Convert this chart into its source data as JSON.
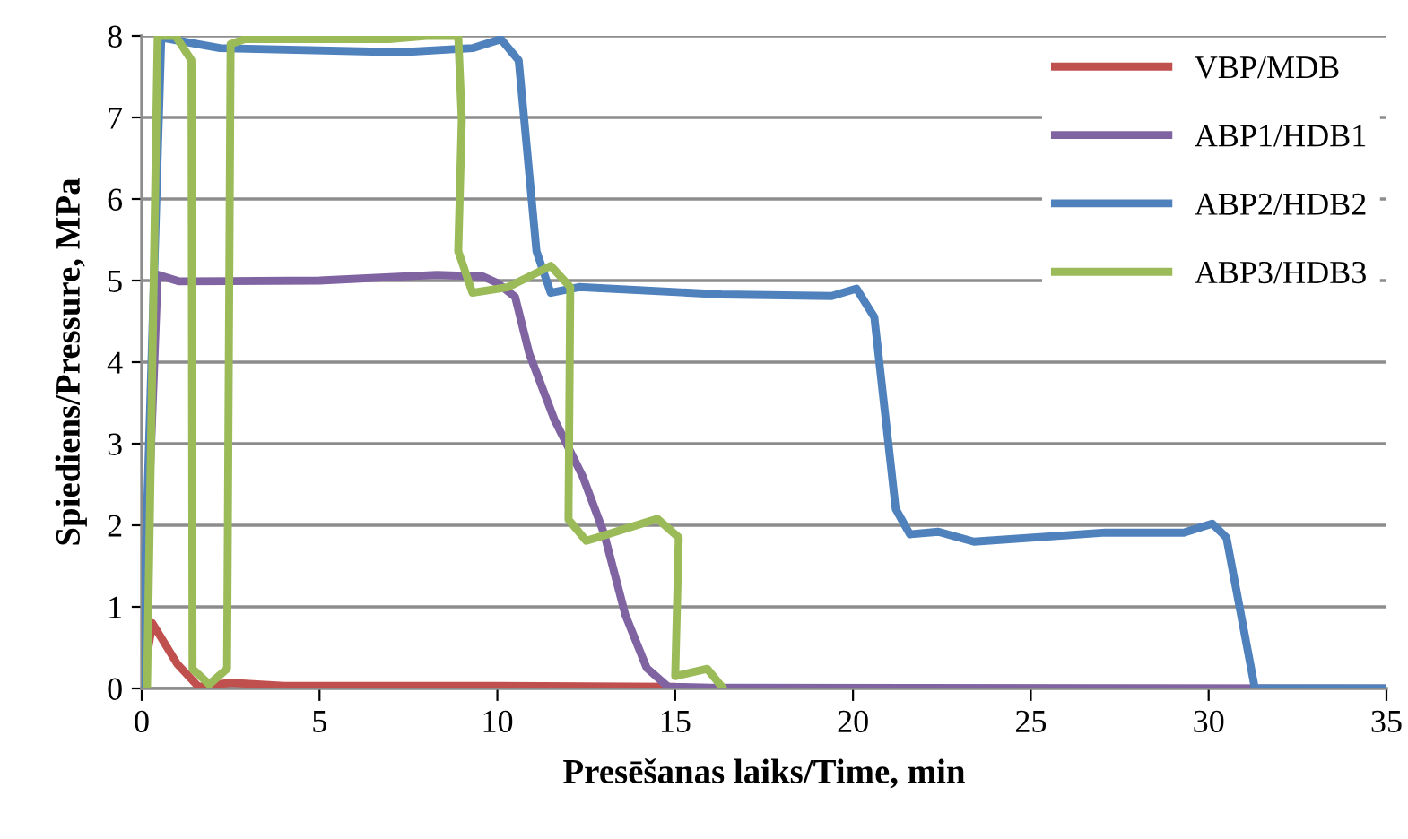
{
  "chart_data": {
    "type": "line",
    "xlabel": "Presēšanas laiks/Time, min",
    "ylabel": "Spiediens/Pressure, MPa",
    "xlim": [
      0,
      35
    ],
    "xticks": [
      0,
      5,
      10,
      15,
      20,
      25,
      30,
      35
    ],
    "ylim": [
      0,
      8
    ],
    "yticks": [
      0,
      1,
      2,
      3,
      4,
      5,
      6,
      7,
      8
    ],
    "grid": "y",
    "legend": "top right",
    "marker": "none",
    "line_style": "solid",
    "series": [
      {
        "name": "VBP/MDB",
        "color": "#c0504d",
        "x": [
          0,
          0.3,
          1.0,
          1.6,
          2.5,
          4,
          10,
          15
        ],
        "values": [
          0,
          0.8,
          0.3,
          0.02,
          0.07,
          0.03,
          0.03,
          0.02
        ]
      },
      {
        "name": "ABP1/HDB1",
        "color": "#8064a2",
        "x": [
          0,
          0.45,
          1.06,
          5,
          8.3,
          9.6,
          10.0,
          10.5,
          10.9,
          11.6,
          12.4,
          13.0,
          13.6,
          14.2,
          14.8,
          16,
          35
        ],
        "values": [
          0,
          5.07,
          4.99,
          5.0,
          5.07,
          5.05,
          4.97,
          4.8,
          4.1,
          3.3,
          2.6,
          1.9,
          0.9,
          0.25,
          0.02,
          0.01,
          0
        ]
      },
      {
        "name": "ABP2/HDB2",
        "color": "#4f81bd",
        "x": [
          0,
          0.55,
          2.2,
          7.3,
          9.3,
          10.1,
          10.6,
          11.1,
          11.5,
          12.3,
          16.3,
          19.4,
          20.1,
          20.6,
          21.2,
          21.6,
          22.4,
          23.4,
          27.1,
          29.3,
          30.1,
          30.5,
          31.3,
          35
        ],
        "values": [
          0,
          7.98,
          7.85,
          7.8,
          7.85,
          7.96,
          7.7,
          5.36,
          4.85,
          4.92,
          4.83,
          4.81,
          4.9,
          4.55,
          2.2,
          1.89,
          1.92,
          1.8,
          1.91,
          1.91,
          2.02,
          1.85,
          0,
          0
        ]
      },
      {
        "name": "ABP3/HDB3",
        "color": "#9bbb59",
        "x": [
          0.15,
          0.45,
          0.95,
          1.4,
          1.43,
          1.9,
          2.4,
          2.5,
          2.9,
          6.96,
          8.0,
          8.9,
          9.0,
          8.9,
          9.3,
          10.3,
          11.5,
          12.05,
          12.0,
          12.5,
          12.8,
          14.5,
          15.1,
          15.0,
          15.9,
          16.35
        ],
        "values": [
          0,
          8.0,
          8.0,
          7.7,
          0.24,
          0.05,
          0.24,
          7.9,
          7.96,
          7.96,
          8.0,
          8.0,
          6.97,
          5.36,
          4.85,
          4.92,
          5.18,
          4.92,
          2.07,
          1.81,
          1.85,
          2.08,
          1.85,
          0.15,
          0.24,
          0
        ]
      }
    ]
  }
}
